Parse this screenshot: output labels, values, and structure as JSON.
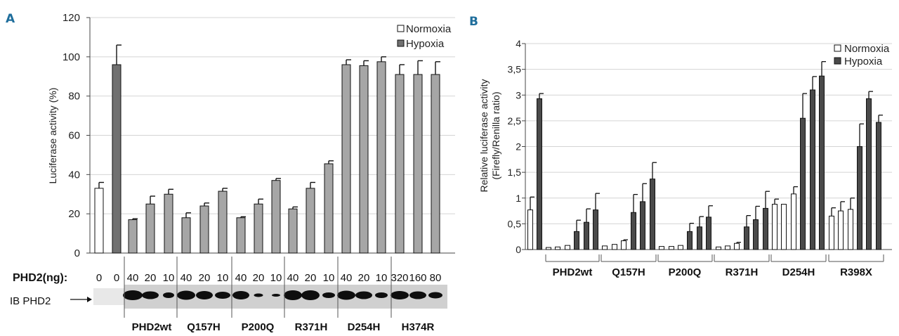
{
  "chart_data": [
    {
      "panel": "A",
      "type": "bar",
      "ylabel": "Luciferase activity (%)",
      "ylim": [
        0,
        120
      ],
      "yticks": [
        "0",
        "20",
        "40",
        "60",
        "80",
        "100",
        "120"
      ],
      "grid": true,
      "legend": {
        "position": "top-right",
        "entries": [
          {
            "name": "Normoxia",
            "color": "#ffffff"
          },
          {
            "name": "Hypoxia",
            "color": "#707070"
          }
        ]
      },
      "bars": [
        {
          "value": 33,
          "err": 3,
          "color": "#ffffff",
          "dose": "0"
        },
        {
          "value": 96,
          "err": 10,
          "color": "#707070",
          "dose": "0"
        },
        {
          "value": 17,
          "err": 0.5,
          "color": "#a6a6a6",
          "dose": "40"
        },
        {
          "value": 25,
          "err": 4,
          "color": "#a6a6a6",
          "dose": "20"
        },
        {
          "value": 30,
          "err": 2.5,
          "color": "#a6a6a6",
          "dose": "10"
        },
        {
          "value": 18,
          "err": 2.5,
          "color": "#a6a6a6",
          "dose": "40"
        },
        {
          "value": 24,
          "err": 1.5,
          "color": "#a6a6a6",
          "dose": "20"
        },
        {
          "value": 31.5,
          "err": 1.5,
          "color": "#a6a6a6",
          "dose": "10"
        },
        {
          "value": 18,
          "err": 0.5,
          "color": "#a6a6a6",
          "dose": "40"
        },
        {
          "value": 25,
          "err": 2.5,
          "color": "#a6a6a6",
          "dose": "20"
        },
        {
          "value": 37,
          "err": 1,
          "color": "#a6a6a6",
          "dose": "10"
        },
        {
          "value": 22.5,
          "err": 1,
          "color": "#a6a6a6",
          "dose": "40"
        },
        {
          "value": 33,
          "err": 3,
          "color": "#a6a6a6",
          "dose": "20"
        },
        {
          "value": 45.5,
          "err": 1.5,
          "color": "#a6a6a6",
          "dose": "10"
        },
        {
          "value": 96,
          "err": 2.5,
          "color": "#a6a6a6",
          "dose": "40"
        },
        {
          "value": 95.5,
          "err": 2.5,
          "color": "#a6a6a6",
          "dose": "20"
        },
        {
          "value": 97.5,
          "err": 2.5,
          "color": "#a6a6a6",
          "dose": "10"
        },
        {
          "value": 91,
          "err": 5,
          "color": "#a6a6a6",
          "dose": "320"
        },
        {
          "value": 91,
          "err": 7,
          "color": "#a6a6a6",
          "dose": "160"
        },
        {
          "value": 91,
          "err": 6.5,
          "color": "#a6a6a6",
          "dose": "80"
        }
      ],
      "dose_label": "PHD2(ng):",
      "blot_label": "IB PHD2",
      "groups": [
        "PHD2wt",
        "Q157H",
        "P200Q",
        "R371H",
        "D254H",
        "H374R"
      ]
    },
    {
      "panel": "B",
      "type": "bar",
      "ylabel_lines": [
        "Relative luciferase activity",
        "(Firefly/Renilla ratio)"
      ],
      "ylim": [
        0,
        4
      ],
      "yticks": [
        "0",
        "0,5",
        "1",
        "1,5",
        "2",
        "2,5",
        "3",
        "3,5",
        "4"
      ],
      "grid": true,
      "legend": {
        "position": "top-right",
        "entries": [
          {
            "name": "Normoxia",
            "color": "#ffffff"
          },
          {
            "name": "Hypoxia",
            "color": "#4a4a4a"
          }
        ]
      },
      "bars": [
        {
          "value": 0.77,
          "err": 0.25,
          "color": "#ffffff"
        },
        {
          "value": 2.93,
          "err": 0.1,
          "color": "#4a4a4a"
        },
        {
          "value": 0.04,
          "err": 0,
          "color": "#ffffff"
        },
        {
          "value": 0.05,
          "err": 0,
          "color": "#ffffff"
        },
        {
          "value": 0.08,
          "err": 0,
          "color": "#ffffff"
        },
        {
          "value": 0.35,
          "err": 0.22,
          "color": "#4a4a4a"
        },
        {
          "value": 0.53,
          "err": 0.26,
          "color": "#4a4a4a"
        },
        {
          "value": 0.77,
          "err": 0.32,
          "color": "#4a4a4a"
        },
        {
          "value": 0.07,
          "err": 0,
          "color": "#ffffff"
        },
        {
          "value": 0.1,
          "err": 0,
          "color": "#ffffff"
        },
        {
          "value": 0.17,
          "err": 0.02,
          "color": "#ffffff"
        },
        {
          "value": 0.72,
          "err": 0.35,
          "color": "#4a4a4a"
        },
        {
          "value": 0.93,
          "err": 0.35,
          "color": "#4a4a4a"
        },
        {
          "value": 1.37,
          "err": 0.32,
          "color": "#4a4a4a"
        },
        {
          "value": 0.06,
          "err": 0,
          "color": "#ffffff"
        },
        {
          "value": 0.06,
          "err": 0,
          "color": "#ffffff"
        },
        {
          "value": 0.08,
          "err": 0,
          "color": "#ffffff"
        },
        {
          "value": 0.35,
          "err": 0.16,
          "color": "#4a4a4a"
        },
        {
          "value": 0.44,
          "err": 0.2,
          "color": "#4a4a4a"
        },
        {
          "value": 0.63,
          "err": 0.22,
          "color": "#4a4a4a"
        },
        {
          "value": 0.05,
          "err": 0,
          "color": "#ffffff"
        },
        {
          "value": 0.07,
          "err": 0,
          "color": "#ffffff"
        },
        {
          "value": 0.12,
          "err": 0.02,
          "color": "#ffffff"
        },
        {
          "value": 0.44,
          "err": 0.22,
          "color": "#4a4a4a"
        },
        {
          "value": 0.58,
          "err": 0.26,
          "color": "#4a4a4a"
        },
        {
          "value": 0.8,
          "err": 0.33,
          "color": "#4a4a4a"
        },
        {
          "value": 0.88,
          "err": 0.1,
          "color": "#ffffff"
        },
        {
          "value": 0.88,
          "err": 0,
          "color": "#ffffff"
        },
        {
          "value": 1.08,
          "err": 0.14,
          "color": "#ffffff"
        },
        {
          "value": 2.55,
          "err": 0.48,
          "color": "#4a4a4a"
        },
        {
          "value": 3.1,
          "err": 0.26,
          "color": "#4a4a4a"
        },
        {
          "value": 3.37,
          "err": 0.28,
          "color": "#4a4a4a"
        },
        {
          "value": 0.65,
          "err": 0.16,
          "color": "#ffffff"
        },
        {
          "value": 0.75,
          "err": 0.18,
          "color": "#ffffff"
        },
        {
          "value": 0.78,
          "err": 0.22,
          "color": "#ffffff"
        },
        {
          "value": 2.0,
          "err": 0.44,
          "color": "#4a4a4a"
        },
        {
          "value": 2.93,
          "err": 0.14,
          "color": "#4a4a4a"
        },
        {
          "value": 2.47,
          "err": 0.14,
          "color": "#4a4a4a"
        }
      ],
      "groups": [
        "PHD2wt",
        "Q157H",
        "P200Q",
        "R371H",
        "D254H",
        "R398X"
      ]
    }
  ]
}
